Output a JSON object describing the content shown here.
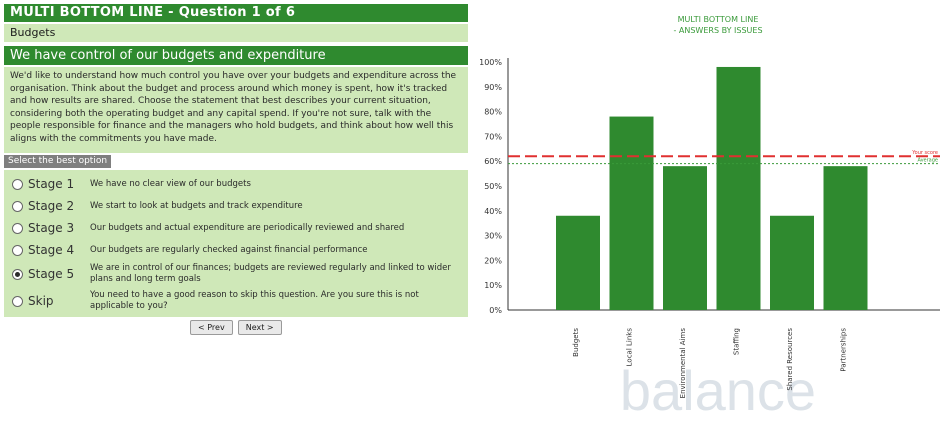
{
  "questionnaire": {
    "title": "MULTI BOTTOM LINE - Question 1 of 6",
    "breadcrumb": "Budgets",
    "question_heading": "We have control of our budgets and expenditure",
    "question_body": "We'd like to understand how much control you have over your budgets and expenditure across the organisation. Think about the budget and process around which money is spent, how it's tracked and how results are shared. Choose the statement that best describes your current situation, considering both the operating budget and any capital spend. If you're not sure, talk with the people responsible for finance and the managers who hold budgets, and think about how well this aligns with the commitments you have made.",
    "select_label": "Select the best option",
    "options": [
      {
        "name": "Stage 1",
        "desc": "We have no clear view of our budgets",
        "selected": false
      },
      {
        "name": "Stage 2",
        "desc": "We start to look at budgets and track expenditure",
        "selected": false
      },
      {
        "name": "Stage 3",
        "desc": "Our budgets and actual expenditure are periodically reviewed and shared",
        "selected": false
      },
      {
        "name": "Stage 4",
        "desc": "Our budgets are regularly checked against financial performance",
        "selected": false
      },
      {
        "name": "Stage 5",
        "desc": "We are in control of our finances; budgets are reviewed regularly and linked to wider plans and long term goals",
        "selected": true
      },
      {
        "name": "Skip",
        "desc": "You need to have a good reason to skip this question. Are you sure this is not applicable to you?",
        "selected": false
      }
    ],
    "prev_label": "< Prev",
    "next_label": "Next >"
  },
  "chart_data": {
    "type": "bar",
    "title": "MULTI BOTTOM LINE",
    "subtitle": "- ANSWERS BY ISSUES",
    "categories": [
      "Budgets",
      "Local Links",
      "Environmental Aims",
      "Staffing",
      "Shared Resources",
      "Partnerships"
    ],
    "values": [
      38,
      78,
      58,
      98,
      38,
      58
    ],
    "ylim": [
      0,
      100
    ],
    "yticks": [
      "0%",
      "10%",
      "20%",
      "30%",
      "40%",
      "50%",
      "60%",
      "70%",
      "80%",
      "90%",
      "100%"
    ],
    "reference_lines": [
      {
        "label": "Your score",
        "value": 62,
        "color": "#e03030",
        "style": "dashed"
      },
      {
        "label": "Average",
        "value": 59,
        "color": "#3a9a3a",
        "style": "dotted"
      }
    ],
    "bar_color": "#2f8a2f",
    "watermark": "balance"
  }
}
